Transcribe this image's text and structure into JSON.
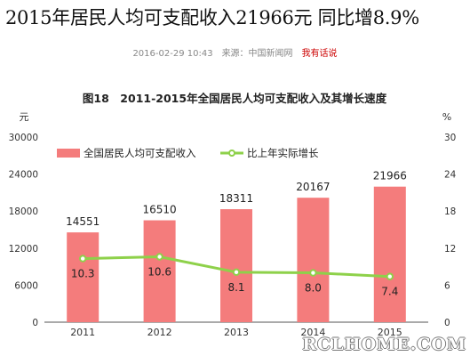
{
  "article": {
    "headline": "2015年居民人均可支配收入21966元 同比增8.9%",
    "timestamp": "2016-02-29 10:43",
    "source": "来源：中国新闻网",
    "comment_link": "我有话说"
  },
  "watermark": "RCLHOME.COM",
  "colors": {
    "bar": "#f47c7c",
    "line": "#8ed14a",
    "marker_fill": "#ffffff",
    "axis_text": "#333333"
  },
  "chart_data": {
    "type": "bar",
    "title": "图18　2011-2015年全国居民人均可支配收入及其增长速度",
    "categories": [
      "2011",
      "2012",
      "2013",
      "2014",
      "2015"
    ],
    "series": [
      {
        "name": "全国居民人均可支配收入",
        "type": "bar",
        "axis": "left",
        "values": [
          14551,
          16510,
          18311,
          20167,
          21966
        ]
      },
      {
        "name": "比上年实际增长",
        "type": "line",
        "axis": "right",
        "values": [
          10.3,
          10.6,
          8.1,
          8.0,
          7.4
        ]
      }
    ],
    "y_left": {
      "unit": "元",
      "range": [
        0,
        30000
      ],
      "ticks": [
        "0",
        "6000",
        "12000",
        "18000",
        "24000",
        "30000"
      ]
    },
    "y_right": {
      "unit": "%",
      "range": [
        0,
        30
      ],
      "ticks": [
        "0",
        "6",
        "12",
        "18",
        "24",
        "30"
      ]
    },
    "grid": false,
    "legend_position": "top-left"
  }
}
